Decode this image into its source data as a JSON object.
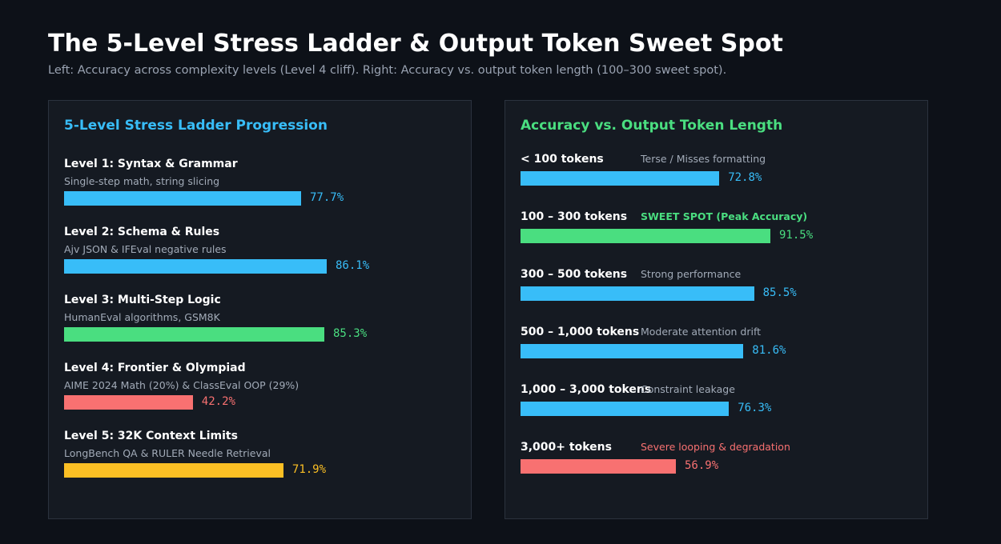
{
  "header": {
    "title": "The 5-Level Stress Ladder & Output Token Sweet Spot",
    "subtitle": "Left: Accuracy across complexity levels (Level 4 cliff). Right: Accuracy vs. output token length (100–300 sweet spot)."
  },
  "colors": {
    "blue": "#38bdf8",
    "green": "#4ade80",
    "red": "#f87171",
    "amber": "#fbbf24",
    "note_grey": "#a2abb8"
  },
  "chart_data": [
    {
      "type": "bar",
      "orientation": "horizontal",
      "title": "5-Level Stress Ladder Progression",
      "title_color": "#38bdf8",
      "unit": "%",
      "categories": [
        "Level 1: Syntax & Grammar",
        "Level 2: Schema & Rules",
        "Level 3: Multi-Step Logic",
        "Level 4: Frontier & Olympiad",
        "Level 5: 32K Context Limits"
      ],
      "descriptions": [
        "Single-step math, string slicing",
        "Ajv JSON & IFEval negative rules",
        "HumanEval algorithms, GSM8K",
        "AIME 2024 Math (20%) & ClassEval OOP (29%)",
        "LongBench QA & RULER Needle Retrieval"
      ],
      "values": [
        77.7,
        86.1,
        85.3,
        42.2,
        71.9
      ],
      "value_labels": [
        "77.7%",
        "86.1%",
        "85.3%",
        "42.2%",
        "71.9%"
      ],
      "bar_colors": [
        "#38bdf8",
        "#38bdf8",
        "#4ade80",
        "#f87171",
        "#fbbf24"
      ],
      "xlim": [
        0,
        100
      ]
    },
    {
      "type": "bar",
      "orientation": "horizontal",
      "title": "Accuracy vs. Output Token Length",
      "title_color": "#4ade80",
      "unit": "%",
      "categories": [
        "< 100 tokens",
        "100 – 300 tokens",
        "300 – 500 tokens",
        "500 – 1,000 tokens",
        "1,000 – 3,000 tokens",
        "3,000+ tokens"
      ],
      "notes": [
        "Terse / Misses formatting",
        "SWEET SPOT (Peak Accuracy)",
        "Strong performance",
        "Moderate attention drift",
        "Constraint leakage",
        "Severe looping & degradation"
      ],
      "note_colors": [
        "#a2abb8",
        "#4ade80",
        "#a2abb8",
        "#a2abb8",
        "#a2abb8",
        "#f87171"
      ],
      "note_bold": [
        false,
        true,
        false,
        false,
        false,
        false
      ],
      "values": [
        72.8,
        91.5,
        85.5,
        81.6,
        76.3,
        56.9
      ],
      "value_labels": [
        "72.8%",
        "91.5%",
        "85.5%",
        "81.6%",
        "76.3%",
        "56.9%"
      ],
      "bar_colors": [
        "#38bdf8",
        "#4ade80",
        "#38bdf8",
        "#38bdf8",
        "#38bdf8",
        "#f87171"
      ],
      "xlim": [
        0,
        100
      ]
    }
  ]
}
